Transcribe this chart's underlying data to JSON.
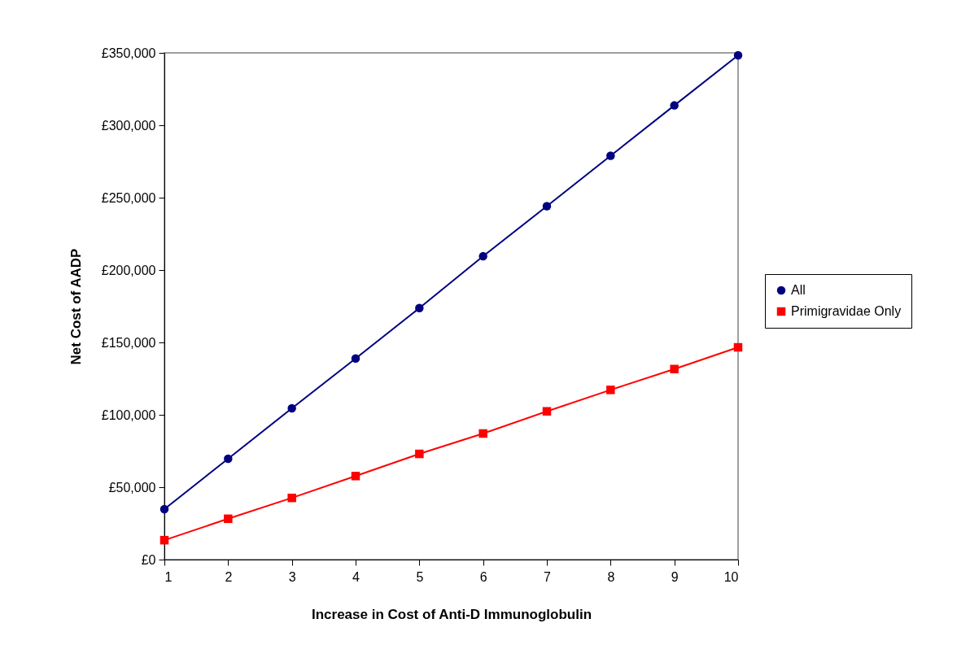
{
  "chart_data": {
    "type": "line",
    "xlabel": "Increase in Cost of Anti-D Immunoglobulin",
    "ylabel": "Net Cost of AADP",
    "x": [
      1,
      2,
      3,
      4,
      5,
      6,
      7,
      8,
      9,
      10
    ],
    "series": [
      {
        "name": "All",
        "color": "#000080",
        "marker": "circle",
        "values": [
          34800,
          69700,
          104500,
          138900,
          173700,
          209500,
          244100,
          278900,
          313700,
          348300
        ]
      },
      {
        "name": "Primigravidae Only",
        "color": "#ff0000",
        "marker": "square",
        "values": [
          13400,
          28200,
          42600,
          57700,
          73000,
          87100,
          102400,
          117200,
          131600,
          146600
        ]
      }
    ],
    "xlim": [
      1,
      10
    ],
    "xticks": [
      1,
      2,
      3,
      4,
      5,
      6,
      7,
      8,
      9,
      10
    ],
    "ylim": [
      0,
      350000
    ],
    "yticks": [
      {
        "value": 0,
        "label": "£0"
      },
      {
        "value": 50000,
        "label": "£50,000"
      },
      {
        "value": 100000,
        "label": "£100,000"
      },
      {
        "value": 150000,
        "label": "£150,000"
      },
      {
        "value": 200000,
        "label": "£200,000"
      },
      {
        "value": 250000,
        "label": "£250,000"
      },
      {
        "value": 300000,
        "label": "£300,000"
      },
      {
        "value": 350000,
        "label": "£350,000"
      }
    ],
    "grid": false,
    "legend": "right",
    "line_style": "solid"
  }
}
